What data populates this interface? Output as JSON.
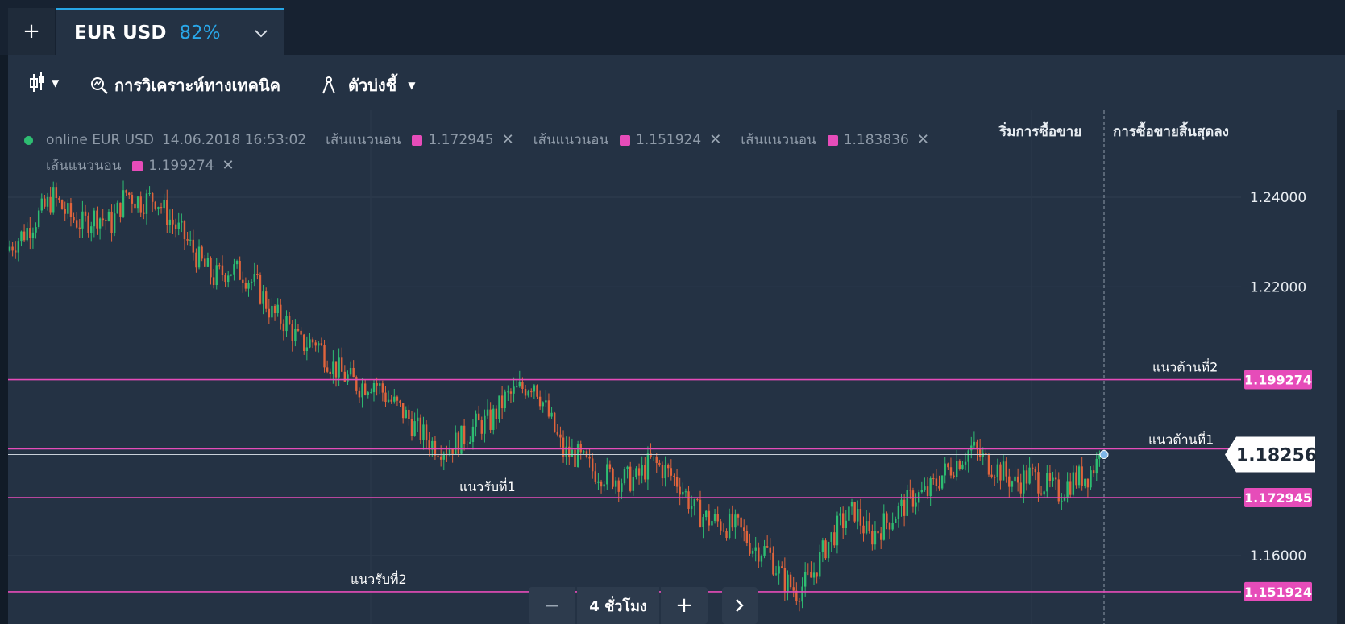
{
  "tabs": {
    "add_label": "+",
    "asset": "EUR USD",
    "payout": "82%",
    "chevron": "chevron-down-icon"
  },
  "toolbar": {
    "chart_type_icon": "candlestick-icon",
    "analysis_label": "การวิเคราะห์ทางเทคนิค",
    "analysis_icon": "magnifier-chart-icon",
    "indicators_label": "ตัวบ่งชี้",
    "indicators_icon": "compass-icon"
  },
  "info": {
    "status": "online EUR USD",
    "datetime": "14.06.2018 16:53:02",
    "lines": [
      {
        "label": "เส้นแนวนอน",
        "value": "1.172945"
      },
      {
        "label": "เส้นแนวนอน",
        "value": "1.151924"
      },
      {
        "label": "เส้นแนวนอน",
        "value": "1.183836"
      },
      {
        "label": "เส้นแนวนอน",
        "value": "1.199274"
      }
    ],
    "remove_icon": "close-icon"
  },
  "headers": {
    "trade_start": "ริ่มการซื้อขาย",
    "trade_end": "การซื้อขายสิ้นสุดลง"
  },
  "colors": {
    "line": "#e64cb9",
    "up": "#2ebd72",
    "down": "#e0643c",
    "accent": "#29a8ea",
    "background": "#243244"
  },
  "chart_data": {
    "type": "candlestick",
    "title": "EUR USD",
    "ylim": [
      1.15,
      1.245
    ],
    "y_ticks": [
      "1.24000",
      "1.22000",
      "1.16000"
    ],
    "current_price": "1.18256",
    "horizontal_lines": [
      {
        "value": 1.199274,
        "label": "1.199274",
        "annotation": "แนวต้านที่2"
      },
      {
        "value": 1.183836,
        "label": "",
        "annotation": "แนวต้านที่1"
      },
      {
        "value": 1.172945,
        "label": "1.172945",
        "annotation": "แนวรับที่1"
      },
      {
        "value": 1.151924,
        "label": "1.151924",
        "annotation": "แนวรับที่2"
      }
    ],
    "close_series": [
      1.229,
      1.232,
      1.236,
      1.24,
      1.236,
      1.234,
      1.236,
      1.234,
      1.241,
      1.239,
      1.24,
      1.235,
      1.231,
      1.226,
      1.222,
      1.224,
      1.223,
      1.22,
      1.214,
      1.212,
      1.207,
      1.208,
      1.203,
      1.2,
      1.198,
      1.199,
      1.195,
      1.192,
      1.188,
      1.185,
      1.184,
      1.186,
      1.189,
      1.19,
      1.195,
      1.197,
      1.199,
      1.191,
      1.183,
      1.182,
      1.179,
      1.178,
      1.177,
      1.177,
      1.181,
      1.179,
      1.176,
      1.17,
      1.168,
      1.167,
      1.166,
      1.162,
      1.161,
      1.155,
      1.152,
      1.155,
      1.162,
      1.167,
      1.17,
      1.164,
      1.167,
      1.17,
      1.173,
      1.174,
      1.178,
      1.181,
      1.184,
      1.181,
      1.179,
      1.176,
      1.178,
      1.176,
      1.174,
      1.177,
      1.178,
      1.1826
    ]
  },
  "bottom": {
    "minus": "−",
    "timeframe": "4 ชั่วโมง",
    "plus": "+",
    "next_icon": "chevron-right-icon"
  }
}
